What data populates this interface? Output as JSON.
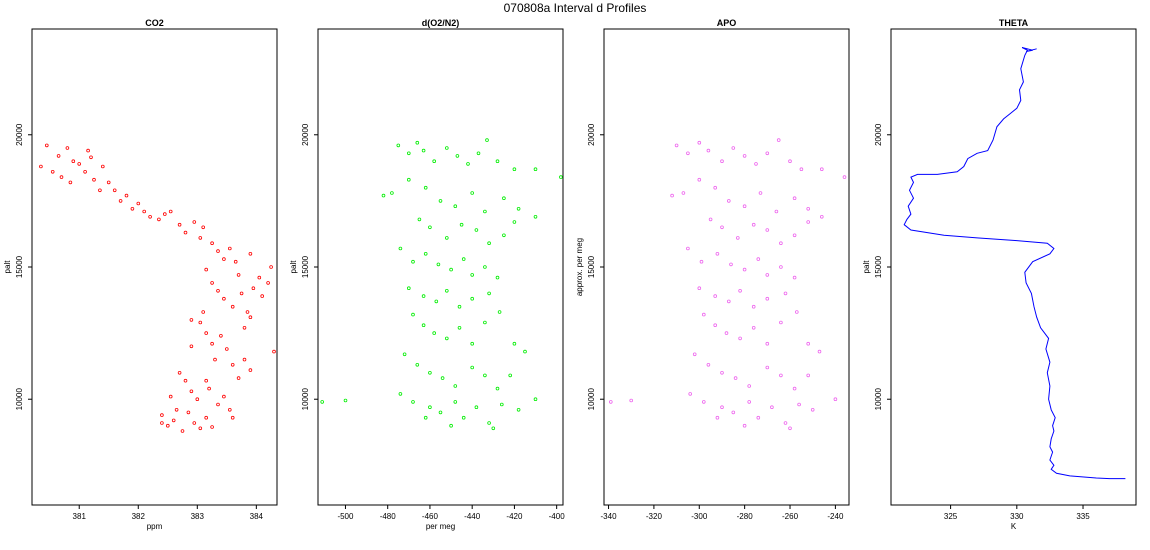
{
  "title": "070808a   Interval d Profiles",
  "colors": {
    "co2": "#ff0000",
    "o2n2": "#00ee00",
    "apo": "#ee66ee",
    "theta": "#0000ff",
    "outline": "#000000"
  },
  "chart_data": [
    {
      "type": "scatter",
      "title": "CO2",
      "xlabel": "ppm",
      "ylabel": "palt",
      "xlim": [
        380.2,
        384.35
      ],
      "ylim": [
        6000,
        24000
      ],
      "xticks": [
        381,
        382,
        383,
        384
      ],
      "yticks": [
        10000,
        15000,
        20000
      ],
      "xtick_labels": [
        "381",
        "382",
        "383",
        "384"
      ],
      "ytick_labels": [
        "10000",
        "15000",
        "20000"
      ],
      "grid": false,
      "points": [
        [
          380.35,
          18800
        ],
        [
          380.45,
          19600
        ],
        [
          380.55,
          18600
        ],
        [
          380.65,
          19200
        ],
        [
          380.7,
          18400
        ],
        [
          380.8,
          19500
        ],
        [
          380.85,
          18200
        ],
        [
          380.9,
          19000
        ],
        [
          381,
          18900
        ],
        [
          381.1,
          18600
        ],
        [
          381.15,
          19400
        ],
        [
          381.2,
          19150
        ],
        [
          381.25,
          18300
        ],
        [
          381.35,
          17900
        ],
        [
          381.4,
          18800
        ],
        [
          381.5,
          18200
        ],
        [
          381.6,
          17900
        ],
        [
          381.7,
          17500
        ],
        [
          381.8,
          17700
        ],
        [
          381.9,
          17200
        ],
        [
          382,
          17400
        ],
        [
          382.1,
          17100
        ],
        [
          382.2,
          16900
        ],
        [
          382.35,
          16800
        ],
        [
          382.45,
          17000
        ],
        [
          382.55,
          17100
        ],
        [
          382.7,
          16600
        ],
        [
          382.8,
          16300
        ],
        [
          382.95,
          16700
        ],
        [
          383.05,
          16100
        ],
        [
          383.1,
          16500
        ],
        [
          383.25,
          15900
        ],
        [
          383.35,
          15600
        ],
        [
          383.45,
          15300
        ],
        [
          383.55,
          15700
        ],
        [
          383.65,
          15200
        ],
        [
          383.7,
          14700
        ],
        [
          383.9,
          15500
        ],
        [
          383.95,
          14200
        ],
        [
          384.05,
          14600
        ],
        [
          384.1,
          13900
        ],
        [
          384.2,
          14400
        ],
        [
          384.25,
          15000
        ],
        [
          383.15,
          14900
        ],
        [
          383.25,
          14400
        ],
        [
          383.35,
          14100
        ],
        [
          383.45,
          13800
        ],
        [
          383.6,
          13500
        ],
        [
          383.75,
          14000
        ],
        [
          383.85,
          13300
        ],
        [
          383.8,
          12700
        ],
        [
          383.9,
          13100
        ],
        [
          384.3,
          11800
        ],
        [
          383.05,
          12900
        ],
        [
          383.15,
          12500
        ],
        [
          383.25,
          12100
        ],
        [
          383.3,
          11500
        ],
        [
          383.5,
          11900
        ],
        [
          383.6,
          11300
        ],
        [
          383.7,
          10800
        ],
        [
          383.8,
          11500
        ],
        [
          383.9,
          11100
        ],
        [
          382.7,
          11000
        ],
        [
          382.8,
          10700
        ],
        [
          382.9,
          10300
        ],
        [
          383.0,
          10000
        ],
        [
          383.2,
          10400
        ],
        [
          383.35,
          9800
        ],
        [
          383.45,
          10100
        ],
        [
          383.55,
          9600
        ],
        [
          383.6,
          9300
        ],
        [
          382.55,
          10100
        ],
        [
          382.4,
          9400
        ],
        [
          382.5,
          9000
        ],
        [
          382.6,
          9200
        ],
        [
          382.75,
          8800
        ],
        [
          382.85,
          9500
        ],
        [
          382.95,
          9100
        ],
        [
          383.05,
          8900
        ],
        [
          383.15,
          9300
        ],
        [
          383.25,
          8950
        ],
        [
          382.4,
          9100
        ],
        [
          382.65,
          9600
        ],
        [
          382.9,
          12000
        ],
        [
          382.9,
          13000
        ],
        [
          383.1,
          13300
        ],
        [
          383.15,
          10700
        ],
        [
          383.4,
          12400
        ]
      ]
    },
    {
      "type": "scatter",
      "title": "d(O2/N2)",
      "xlabel": "per meg",
      "ylabel": "palt",
      "xlim": [
        -513,
        -397
      ],
      "ylim": [
        6000,
        24000
      ],
      "xticks": [
        -500,
        -480,
        -460,
        -440,
        -420,
        -400
      ],
      "yticks": [
        10000,
        15000,
        20000
      ],
      "xtick_labels": [
        "-500",
        "-480",
        "-460",
        "-440",
        "-420",
        "-400"
      ],
      "ytick_labels": [
        "10000",
        "15000",
        "20000"
      ],
      "grid": false,
      "points": [
        [
          -511,
          9900
        ],
        [
          -500,
          9950
        ],
        [
          -475,
          19600
        ],
        [
          -470,
          19300
        ],
        [
          -466,
          19700
        ],
        [
          -463,
          19400
        ],
        [
          -458,
          19000
        ],
        [
          -452,
          19500
        ],
        [
          -447,
          19200
        ],
        [
          -442,
          18900
        ],
        [
          -437,
          19300
        ],
        [
          -433,
          19800
        ],
        [
          -428,
          19000
        ],
        [
          -420,
          18700
        ],
        [
          -410,
          18700
        ],
        [
          -398,
          18400
        ],
        [
          -482,
          17700
        ],
        [
          -478,
          17800
        ],
        [
          -470,
          18300
        ],
        [
          -462,
          18000
        ],
        [
          -455,
          17500
        ],
        [
          -448,
          17300
        ],
        [
          -440,
          17800
        ],
        [
          -434,
          17100
        ],
        [
          -425,
          17600
        ],
        [
          -418,
          17200
        ],
        [
          -410,
          16900
        ],
        [
          -465,
          16800
        ],
        [
          -460,
          16500
        ],
        [
          -452,
          16100
        ],
        [
          -445,
          16600
        ],
        [
          -438,
          16400
        ],
        [
          -432,
          15900
        ],
        [
          -425,
          16200
        ],
        [
          -420,
          16700
        ],
        [
          -474,
          15700
        ],
        [
          -468,
          15200
        ],
        [
          -462,
          15500
        ],
        [
          -456,
          15100
        ],
        [
          -450,
          14900
        ],
        [
          -444,
          15300
        ],
        [
          -440,
          14700
        ],
        [
          -434,
          15000
        ],
        [
          -428,
          14600
        ],
        [
          -470,
          14200
        ],
        [
          -463,
          13900
        ],
        [
          -457,
          13700
        ],
        [
          -452,
          14100
        ],
        [
          -446,
          13500
        ],
        [
          -440,
          13800
        ],
        [
          -432,
          14000
        ],
        [
          -427,
          13300
        ],
        [
          -468,
          13200
        ],
        [
          -463,
          12800
        ],
        [
          -458,
          12500
        ],
        [
          -452,
          12300
        ],
        [
          -446,
          12700
        ],
        [
          -440,
          12100
        ],
        [
          -434,
          12900
        ],
        [
          -420,
          12100
        ],
        [
          -415,
          11800
        ],
        [
          -472,
          11700
        ],
        [
          -466,
          11300
        ],
        [
          -460,
          11000
        ],
        [
          -454,
          10800
        ],
        [
          -448,
          10500
        ],
        [
          -440,
          11200
        ],
        [
          -434,
          10900
        ],
        [
          -428,
          10400
        ],
        [
          -422,
          10900
        ],
        [
          -474,
          10200
        ],
        [
          -468,
          9900
        ],
        [
          -460,
          9700
        ],
        [
          -455,
          9500
        ],
        [
          -448,
          9900
        ],
        [
          -444,
          9300
        ],
        [
          -438,
          9700
        ],
        [
          -432,
          9100
        ],
        [
          -426,
          9800
        ],
        [
          -418,
          9600
        ],
        [
          -410,
          10000
        ],
        [
          -430,
          8900
        ],
        [
          -450,
          9000
        ],
        [
          -462,
          9300
        ]
      ]
    },
    {
      "type": "scatter",
      "title": "APO",
      "xlabel": "",
      "ylabel": "approx. per meg",
      "xlim": [
        -342,
        -234
      ],
      "ylim": [
        6000,
        24000
      ],
      "xticks": [
        -340,
        -320,
        -300,
        -280,
        -260,
        -240
      ],
      "yticks": [
        10000,
        15000,
        20000
      ],
      "xtick_labels": [
        "-340",
        "-320",
        "-300",
        "-280",
        "-260",
        "-240"
      ],
      "ytick_labels": [
        "10000",
        "15000",
        "20000"
      ],
      "grid": false,
      "points": [
        [
          -339,
          9900
        ],
        [
          -330,
          9950
        ],
        [
          -310,
          19600
        ],
        [
          -305,
          19300
        ],
        [
          -300,
          19700
        ],
        [
          -296,
          19400
        ],
        [
          -290,
          19000
        ],
        [
          -285,
          19500
        ],
        [
          -280,
          19200
        ],
        [
          -275,
          18900
        ],
        [
          -270,
          19300
        ],
        [
          -265,
          19800
        ],
        [
          -260,
          19000
        ],
        [
          -255,
          18700
        ],
        [
          -246,
          18700
        ],
        [
          -236,
          18400
        ],
        [
          -312,
          17700
        ],
        [
          -307,
          17800
        ],
        [
          -300,
          18300
        ],
        [
          -293,
          18000
        ],
        [
          -287,
          17500
        ],
        [
          -280,
          17300
        ],
        [
          -273,
          17800
        ],
        [
          -266,
          17100
        ],
        [
          -258,
          17600
        ],
        [
          -252,
          17200
        ],
        [
          -246,
          16900
        ],
        [
          -295,
          16800
        ],
        [
          -290,
          16500
        ],
        [
          -283,
          16100
        ],
        [
          -276,
          16600
        ],
        [
          -270,
          16400
        ],
        [
          -264,
          15900
        ],
        [
          -258,
          16200
        ],
        [
          -252,
          16700
        ],
        [
          -305,
          15700
        ],
        [
          -299,
          15200
        ],
        [
          -292,
          15500
        ],
        [
          -286,
          15100
        ],
        [
          -280,
          14900
        ],
        [
          -274,
          15300
        ],
        [
          -270,
          14700
        ],
        [
          -264,
          15000
        ],
        [
          -258,
          14600
        ],
        [
          -300,
          14200
        ],
        [
          -293,
          13900
        ],
        [
          -287,
          13700
        ],
        [
          -282,
          14100
        ],
        [
          -276,
          13500
        ],
        [
          -270,
          13800
        ],
        [
          -262,
          14000
        ],
        [
          -257,
          13300
        ],
        [
          -298,
          13200
        ],
        [
          -293,
          12800
        ],
        [
          -288,
          12500
        ],
        [
          -282,
          12300
        ],
        [
          -276,
          12700
        ],
        [
          -270,
          12100
        ],
        [
          -264,
          12900
        ],
        [
          -252,
          12100
        ],
        [
          -247,
          11800
        ],
        [
          -302,
          11700
        ],
        [
          -296,
          11300
        ],
        [
          -290,
          11000
        ],
        [
          -284,
          10800
        ],
        [
          -278,
          10500
        ],
        [
          -270,
          11200
        ],
        [
          -264,
          10900
        ],
        [
          -258,
          10400
        ],
        [
          -252,
          10900
        ],
        [
          -304,
          10200
        ],
        [
          -298,
          9900
        ],
        [
          -290,
          9700
        ],
        [
          -285,
          9500
        ],
        [
          -278,
          9900
        ],
        [
          -274,
          9300
        ],
        [
          -268,
          9700
        ],
        [
          -262,
          9100
        ],
        [
          -256,
          9800
        ],
        [
          -250,
          9600
        ],
        [
          -240,
          10000
        ],
        [
          -260,
          8900
        ],
        [
          -280,
          9000
        ],
        [
          -292,
          9300
        ]
      ]
    },
    {
      "type": "line",
      "title": "THETA",
      "xlabel": "K",
      "ylabel": "palt",
      "xlim": [
        320.5,
        339
      ],
      "ylim": [
        6000,
        24000
      ],
      "xticks": [
        325,
        330,
        335
      ],
      "yticks": [
        10000,
        15000,
        20000
      ],
      "xtick_labels": [
        "325",
        "330",
        "335"
      ],
      "ytick_labels": [
        "10000",
        "15000",
        "20000"
      ],
      "grid": false,
      "points": [
        [
          338.2,
          7000
        ],
        [
          337,
          7000
        ],
        [
          336,
          7020
        ],
        [
          334,
          7100
        ],
        [
          333,
          7200
        ],
        [
          332.6,
          7350
        ],
        [
          332.8,
          7500
        ],
        [
          332.5,
          7700
        ],
        [
          332.7,
          8000
        ],
        [
          332.5,
          8200
        ],
        [
          332.6,
          8500
        ],
        [
          332.8,
          8800
        ],
        [
          332.7,
          9000
        ],
        [
          332.9,
          9300
        ],
        [
          332.6,
          9600
        ],
        [
          332.4,
          10000
        ],
        [
          332.5,
          10500
        ],
        [
          332.3,
          11000
        ],
        [
          332.5,
          11400
        ],
        [
          332.2,
          11900
        ],
        [
          332.4,
          12300
        ],
        [
          331.8,
          12700
        ],
        [
          331.5,
          13100
        ],
        [
          331.3,
          13500
        ],
        [
          331.1,
          14000
        ],
        [
          330.7,
          14400
        ],
        [
          330.6,
          14800
        ],
        [
          331.2,
          15200
        ],
        [
          332.5,
          15500
        ],
        [
          332.8,
          15700
        ],
        [
          332.3,
          15900
        ],
        [
          330,
          16000
        ],
        [
          327,
          16100
        ],
        [
          324.5,
          16200
        ],
        [
          322,
          16400
        ],
        [
          321.5,
          16600
        ],
        [
          321.7,
          16800
        ],
        [
          322,
          17000
        ],
        [
          321.8,
          17300
        ],
        [
          322.2,
          17600
        ],
        [
          321.9,
          17900
        ],
        [
          322.2,
          18200
        ],
        [
          322,
          18400
        ],
        [
          322.5,
          18500
        ],
        [
          324,
          18500
        ],
        [
          325.5,
          18600
        ],
        [
          326,
          18800
        ],
        [
          326.3,
          19100
        ],
        [
          327,
          19300
        ],
        [
          327.8,
          19400
        ],
        [
          328.2,
          19800
        ],
        [
          328.5,
          20300
        ],
        [
          329,
          20600
        ],
        [
          329.5,
          20800
        ],
        [
          330,
          21000
        ],
        [
          330.3,
          21300
        ],
        [
          330.2,
          21700
        ],
        [
          330.5,
          22000
        ],
        [
          330.3,
          22500
        ],
        [
          330.6,
          23000
        ],
        [
          330.8,
          23200
        ],
        [
          330.4,
          23300
        ],
        [
          331.2,
          23200
        ],
        [
          330.7,
          23150
        ],
        [
          331.5,
          23250
        ]
      ]
    }
  ]
}
